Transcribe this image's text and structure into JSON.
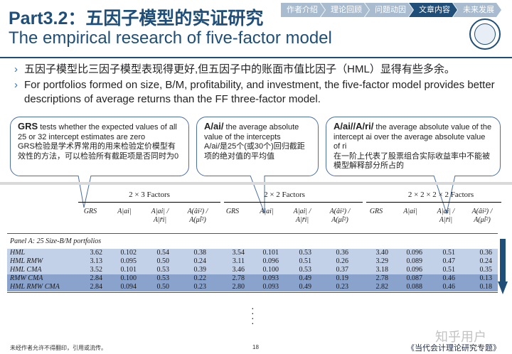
{
  "header": {
    "part": "Part3.2",
    "sep": "：",
    "title_zh": "五因子模型的实证研究",
    "title_en": "The empirical research of five-factor model"
  },
  "nav": {
    "tabs": [
      "作者介绍",
      "理论回顾",
      "问题动因",
      "文章内容",
      "未来发展"
    ],
    "active_index": 3
  },
  "bullets": [
    "五因子模型比三因子模型表现得更好,但五因子中的账面市值比因子（HML）显得有些多余。",
    "For portfolios formed on size, B/M, profitability, and investment, the five-factor model provides better descriptions of average returns than the FF three-factor model."
  ],
  "callouts": {
    "grs": {
      "key": "GRS",
      "en": " tests  whether the expected values of all 25 or 32 intercept estimates are zero",
      "zh": "GRS检验是学术界常用的用来检验定价模型有效性的方法，可以检验所有截距项是否同时为0"
    },
    "aai": {
      "key": "A/ai/",
      "en": " the average absolute value of the intercepts",
      "zh": " A/ai/是25个(或30个)回归截距项的绝对值的平均值"
    },
    "ari": {
      "key": "A/ai//A/ri/",
      "en": " the average absolute value of the intercept ai over the average absolute value of ri",
      "zh": "在一阶上代表了股票组合实际收益率中不能被模型解释部分所占的"
    }
  },
  "table": {
    "groups": [
      "2 × 3 Factors",
      "2 × 2 Factors",
      "2 × 2 × 2 × 2 Factors"
    ],
    "col_heads": [
      "GRS",
      "A|ai|",
      "A|ai| / A|r̄i|",
      "A(âi²) / A(μ̂i²)"
    ],
    "panel_title": "Panel A: 25 Size-B/M portfolios",
    "rows": [
      {
        "label": "HML",
        "values": [
          "3.62",
          "0.102",
          "0.54",
          "0.38",
          "3.54",
          "0.101",
          "0.53",
          "0.36",
          "3.40",
          "0.096",
          "0.51",
          "0.36"
        ]
      },
      {
        "label": "HML RMW",
        "values": [
          "3.13",
          "0.095",
          "0.50",
          "0.24",
          "3.11",
          "0.096",
          "0.51",
          "0.26",
          "3.29",
          "0.089",
          "0.47",
          "0.24"
        ]
      },
      {
        "label": "HML CMA",
        "values": [
          "3.52",
          "0.101",
          "0.53",
          "0.39",
          "3.46",
          "0.100",
          "0.53",
          "0.37",
          "3.18",
          "0.096",
          "0.51",
          "0.35"
        ]
      },
      {
        "label": "RMW CMA",
        "values": [
          "2.84",
          "0.100",
          "0.53",
          "0.22",
          "2.78",
          "0.093",
          "0.49",
          "0.19",
          "2.78",
          "0.087",
          "0.46",
          "0.13"
        ]
      },
      {
        "label": "HML RMW CMA",
        "values": [
          "2.84",
          "0.094",
          "0.50",
          "0.23",
          "2.80",
          "0.093",
          "0.49",
          "0.23",
          "2.82",
          "0.088",
          "0.46",
          "0.18"
        ]
      }
    ]
  },
  "footer": {
    "left": "未经作者允许不得翻印，引用或流传。",
    "page": "18",
    "right": "《当代会计理论研究专题》",
    "watermark": "知乎用户"
  },
  "colors": {
    "brand": "#1f4e79",
    "nav_inactive": "#a9bccf",
    "row_highlight": "#8aa3cc",
    "bubble_border": "#4a6fa5"
  }
}
